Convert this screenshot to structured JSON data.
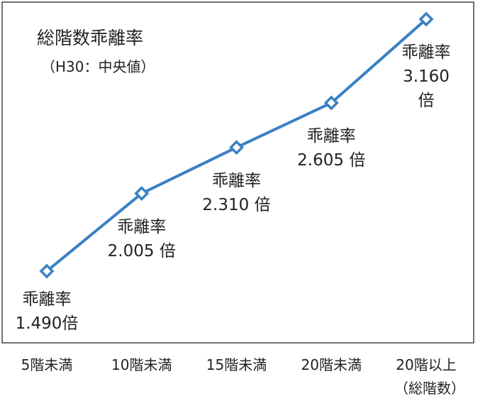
{
  "chart_data": {
    "type": "line",
    "title": "総階数乖離率",
    "subtitle": "（H30：中央値）",
    "categories": [
      "5階未満",
      "10階未満",
      "15階未満",
      "20階未満",
      "20階以上\n（総階数）"
    ],
    "values": [
      1.49,
      2.005,
      2.31,
      2.605,
      3.16
    ],
    "value_labels": [
      "乖離率\n1.490倍",
      "乖離率\n2.005 倍",
      "乖離率\n2.310 倍",
      "乖離率\n2.605 倍",
      "乖離率\n3.160 倍"
    ],
    "color": "#3a80c3"
  }
}
